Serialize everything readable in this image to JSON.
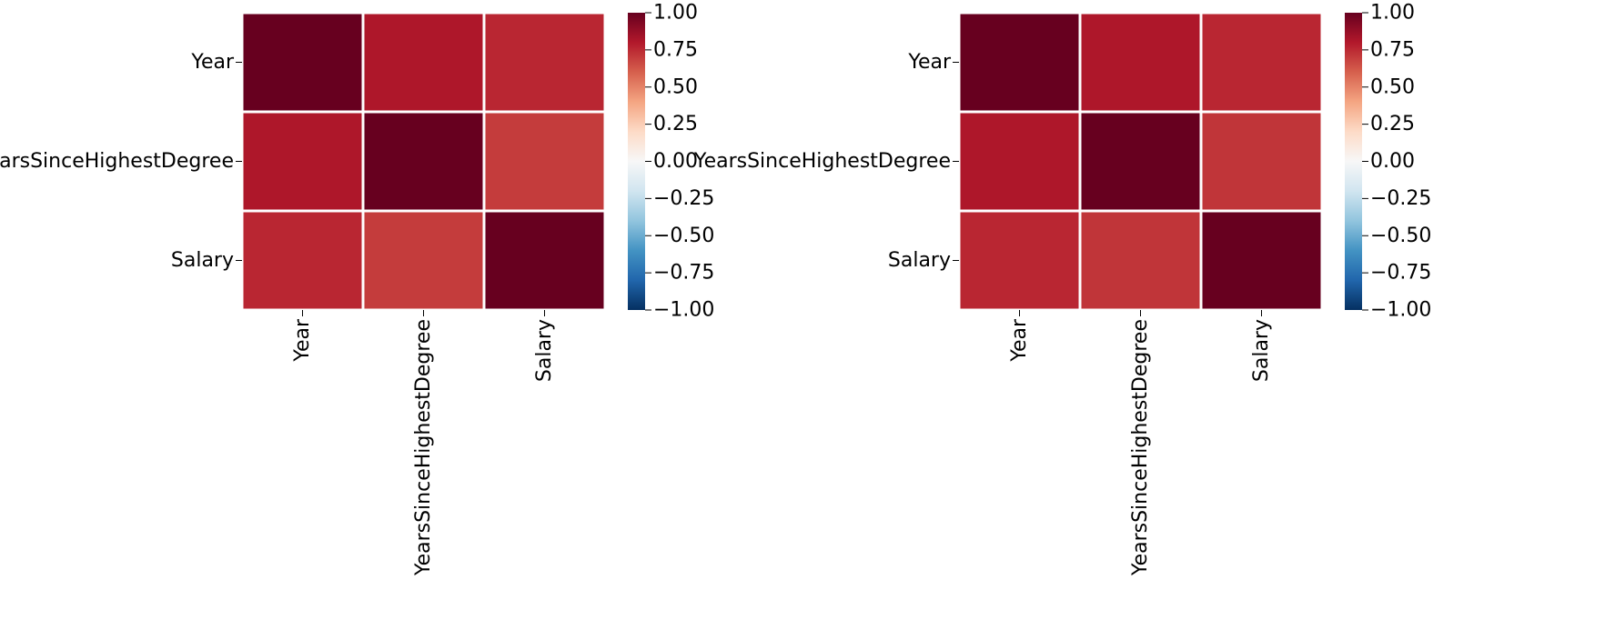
{
  "chart_data": [
    {
      "type": "heatmap",
      "x_categories": [
        "Year",
        "YearsSinceHighestDegree",
        "Salary"
      ],
      "y_categories": [
        "Year",
        "YearsSinceHighestDegree",
        "Salary"
      ],
      "values": [
        [
          1.0,
          0.81,
          0.76
        ],
        [
          0.81,
          1.0,
          0.7
        ],
        [
          0.76,
          0.7,
          1.0
        ]
      ],
      "colorbar": {
        "min": -1.0,
        "max": 1.0,
        "colormap": "RdBu_r",
        "ticks": [
          1.0,
          0.75,
          0.5,
          0.25,
          0.0,
          -0.25,
          -0.5,
          -0.75,
          -1.0
        ],
        "tick_labels": [
          "1.00",
          "0.75",
          "0.50",
          "0.25",
          "0.00",
          "−0.25",
          "−0.50",
          "−0.75",
          "−1.00"
        ]
      }
    },
    {
      "type": "heatmap",
      "x_categories": [
        "Year",
        "YearsSinceHighestDegree",
        "Salary"
      ],
      "y_categories": [
        "Year",
        "YearsSinceHighestDegree",
        "Salary"
      ],
      "values": [
        [
          1.0,
          0.81,
          0.76
        ],
        [
          0.81,
          1.0,
          0.72
        ],
        [
          0.76,
          0.72,
          1.0
        ]
      ],
      "colorbar": {
        "min": -1.0,
        "max": 1.0,
        "colormap": "RdBu_r",
        "ticks": [
          1.0,
          0.75,
          0.5,
          0.25,
          0.0,
          -0.25,
          -0.5,
          -0.75,
          -1.0
        ],
        "tick_labels": [
          "1.00",
          "0.75",
          "0.50",
          "0.25",
          "0.00",
          "−0.25",
          "−0.50",
          "−0.75",
          "−1.00"
        ]
      }
    }
  ]
}
